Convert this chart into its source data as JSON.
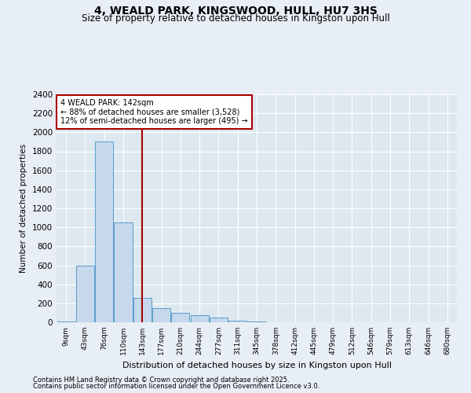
{
  "title": "4, WEALD PARK, KINGSWOOD, HULL, HU7 3HS",
  "subtitle": "Size of property relative to detached houses in Kingston upon Hull",
  "xlabel": "Distribution of detached houses by size in Kingston upon Hull",
  "ylabel": "Number of detached properties",
  "footnote1": "Contains HM Land Registry data © Crown copyright and database right 2025.",
  "footnote2": "Contains public sector information licensed under the Open Government Licence v3.0.",
  "bins": [
    "9sqm",
    "43sqm",
    "76sqm",
    "110sqm",
    "143sqm",
    "177sqm",
    "210sqm",
    "244sqm",
    "277sqm",
    "311sqm",
    "345sqm",
    "378sqm",
    "412sqm",
    "445sqm",
    "479sqm",
    "512sqm",
    "546sqm",
    "579sqm",
    "613sqm",
    "646sqm",
    "680sqm"
  ],
  "values": [
    5,
    600,
    1900,
    1050,
    255,
    150,
    100,
    75,
    50,
    15,
    5,
    2,
    1,
    1,
    0,
    0,
    0,
    0,
    0,
    0,
    0
  ],
  "bar_color": "#c5d8ec",
  "bar_edge_color": "#5b9dc9",
  "red_line_bin": 4,
  "annotation_line1": "4 WEALD PARK: 142sqm",
  "annotation_line2": "← 88% of detached houses are smaller (3,528)",
  "annotation_line3": "12% of semi-detached houses are larger (495) →",
  "annotation_box_color": "#ffffff",
  "annotation_border_color": "#aa0000",
  "ylim": [
    0,
    2400
  ],
  "yticks": [
    0,
    200,
    400,
    600,
    800,
    1000,
    1200,
    1400,
    1600,
    1800,
    2000,
    2200,
    2400
  ],
  "background_color": "#e8eef5",
  "plot_background": "#dde8f0",
  "grid_color": "#ffffff",
  "title_fontsize": 10,
  "subtitle_fontsize": 8.5,
  "footnote_fontsize": 6
}
